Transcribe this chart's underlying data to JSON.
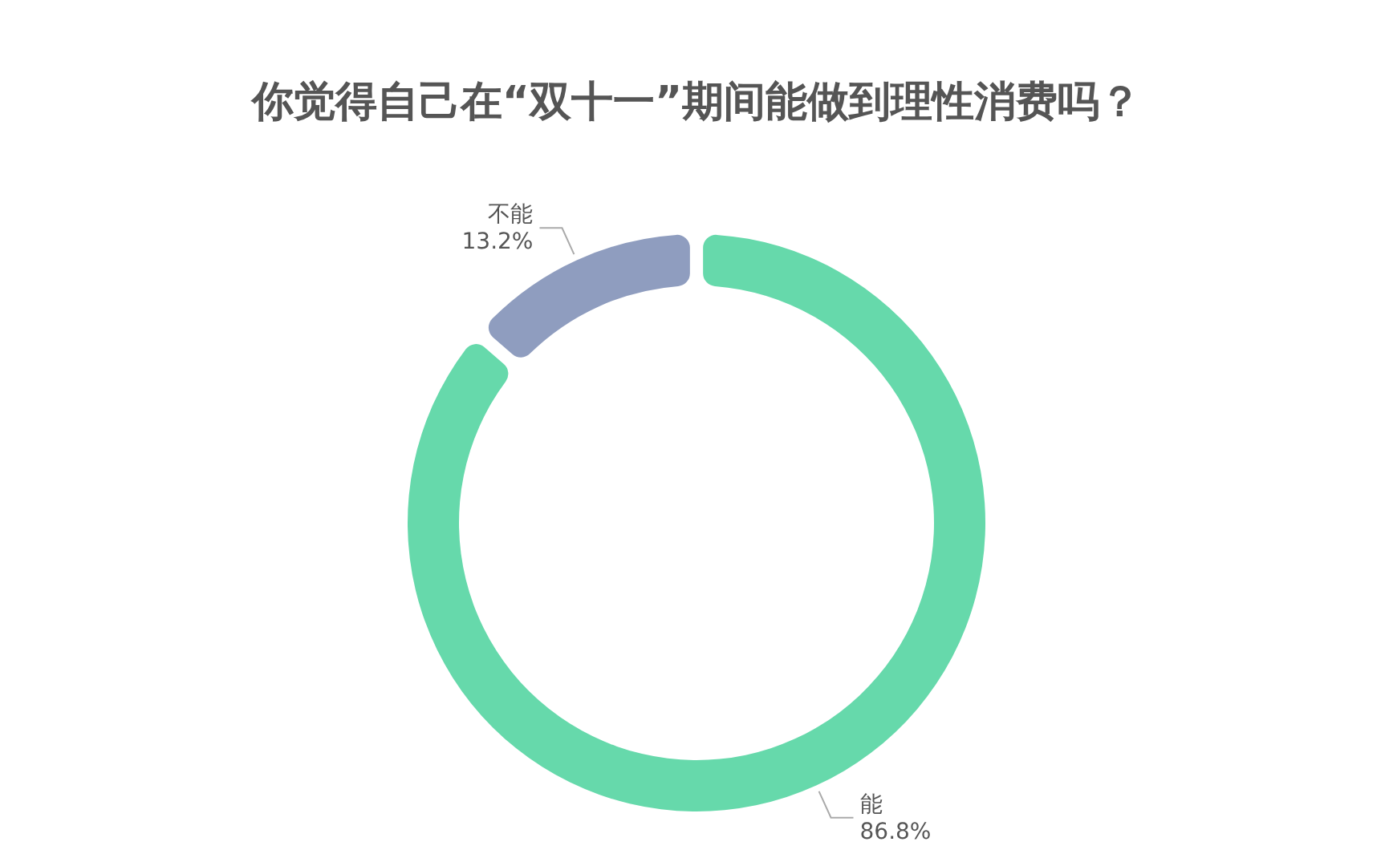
{
  "chart_data": {
    "type": "donut",
    "title": "你觉得自己在“双十一”期间能做到理性消费吗？",
    "categories": [
      "能",
      "不能"
    ],
    "values": [
      86.8,
      13.2
    ],
    "colors": [
      "#66d9ab",
      "#8f9dbf"
    ],
    "value_labels": [
      "86.8%",
      "13.2%"
    ]
  }
}
